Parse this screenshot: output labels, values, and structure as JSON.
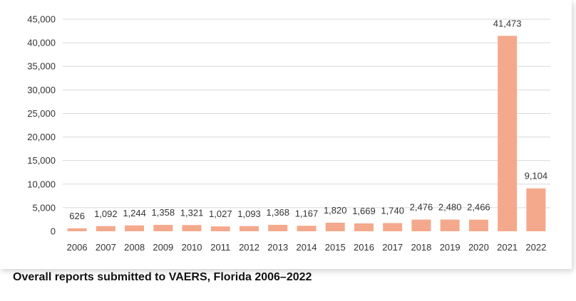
{
  "caption": "Overall reports submitted to VAERS, Florida 2006–2022",
  "chart_data": {
    "type": "bar",
    "title": "",
    "xlabel": "",
    "ylabel": "",
    "categories": [
      "2006",
      "2007",
      "2008",
      "2009",
      "2010",
      "2011",
      "2012",
      "2013",
      "2014",
      "2015",
      "2016",
      "2017",
      "2018",
      "2019",
      "2020",
      "2021",
      "2022"
    ],
    "values": [
      626,
      1092,
      1244,
      1358,
      1321,
      1027,
      1093,
      1368,
      1167,
      1820,
      1669,
      1740,
      2476,
      2480,
      2466,
      41473,
      9104
    ],
    "data_labels": [
      "626",
      "1,092",
      "1,244",
      "1,358",
      "1,321",
      "1,027",
      "1,093",
      "1,368",
      "1,167",
      "1,820",
      "1,669",
      "1,740",
      "2,476",
      "2,480",
      "2,466",
      "41,473",
      "9,104"
    ],
    "ylim": [
      0,
      45000
    ],
    "yticks": [
      0,
      5000,
      10000,
      15000,
      20000,
      25000,
      30000,
      35000,
      40000,
      45000
    ],
    "ytick_labels": [
      "0",
      "5,000",
      "10,000",
      "15,000",
      "20,000",
      "25,000",
      "30,000",
      "35,000",
      "40,000",
      "45,000"
    ],
    "grid": true,
    "bar_color": "#f4a98d",
    "grid_color": "#d9d9d9"
  }
}
